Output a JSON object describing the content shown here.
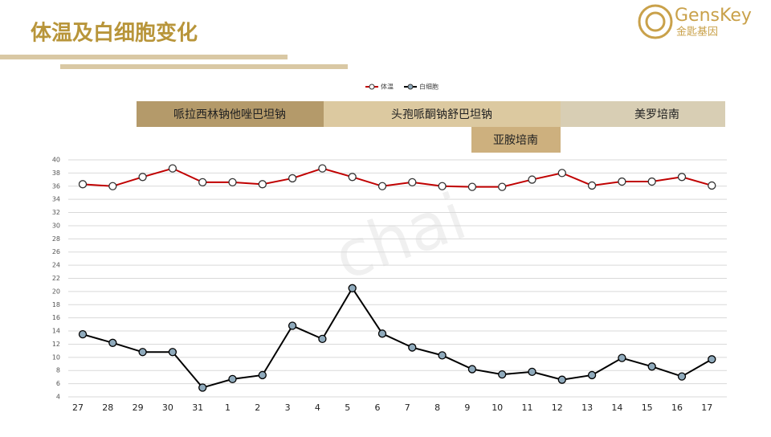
{
  "header": {
    "title": "体温及白细胞变化",
    "logo_text": "GensKey",
    "logo_subtext": "金匙基因"
  },
  "watermark": "chai",
  "regimens": [
    "哌拉西林钠他唑巴坦钠",
    "头孢哌酮钠舒巴坦钠",
    "美罗培南",
    "亚胺培南"
  ],
  "chart_data": {
    "type": "line",
    "categories": [
      "27",
      "28",
      "29",
      "30",
      "31",
      "1",
      "2",
      "3",
      "4",
      "5",
      "6",
      "7",
      "8",
      "9",
      "10",
      "11",
      "12",
      "13",
      "14",
      "15",
      "16",
      "17"
    ],
    "series": [
      {
        "name": "体温",
        "color": "#c00000",
        "marker_color": "#ffffff",
        "values": [
          36.3,
          36.0,
          37.4,
          38.7,
          36.6,
          36.6,
          36.3,
          37.2,
          38.7,
          37.4,
          36.0,
          36.6,
          36.0,
          35.9,
          35.9,
          37.0,
          38.0,
          36.1,
          36.7,
          36.7,
          37.4,
          36.1
        ]
      },
      {
        "name": "白细胞",
        "color": "#000000",
        "marker_color": "#8faabc",
        "values": [
          13.5,
          12.2,
          10.8,
          10.8,
          5.4,
          6.7,
          7.3,
          14.8,
          12.8,
          20.5,
          13.6,
          11.5,
          10.3,
          8.2,
          7.4,
          7.8,
          6.6,
          7.3,
          9.9,
          8.6,
          7.1,
          9.7
        ]
      }
    ],
    "ylim": [
      4,
      40
    ],
    "yticks": [
      4,
      6,
      8,
      10,
      12,
      14,
      16,
      18,
      20,
      22,
      24,
      26,
      28,
      30,
      32,
      34,
      36,
      38,
      40
    ],
    "grid": true,
    "legend": "top"
  }
}
